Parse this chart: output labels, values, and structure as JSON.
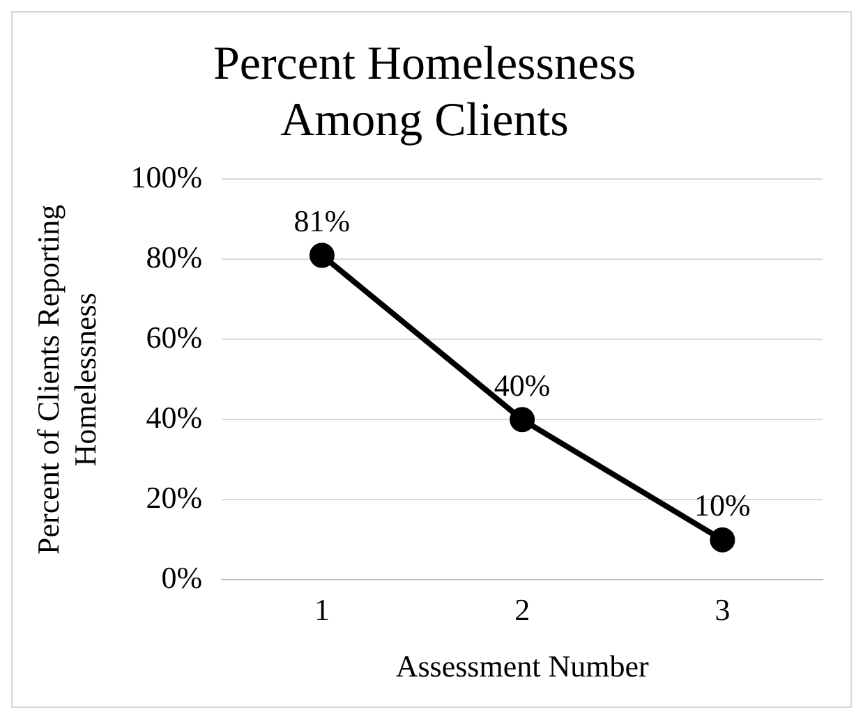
{
  "chart_data": {
    "type": "line",
    "title": "Percent Homelessness Among Clients",
    "xlabel": "Assessment Number",
    "ylabel": "Percent of Clients Reporting Homelessness",
    "categories": [
      "1",
      "2",
      "3"
    ],
    "series": [
      {
        "color": "#000000",
        "values": [
          81,
          40,
          10
        ],
        "value_labels": [
          "81%",
          "40%",
          "10%"
        ]
      }
    ],
    "ylim": [
      0,
      100
    ],
    "yticks": [
      {
        "value": 0,
        "label": "0%"
      },
      {
        "value": 20,
        "label": "20%"
      },
      {
        "value": 40,
        "label": "40%"
      },
      {
        "value": 60,
        "label": "60%"
      },
      {
        "value": 80,
        "label": "80%"
      },
      {
        "value": 100,
        "label": "100%"
      }
    ],
    "grid": "y",
    "legend": false,
    "marker": "circle",
    "line_style": "solid"
  }
}
